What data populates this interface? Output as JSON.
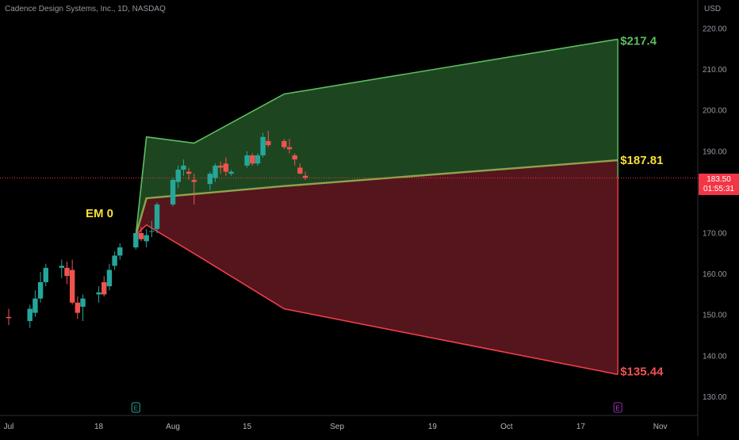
{
  "header": {
    "symbol_info": "Cadence Design Systems, Inc., 1D, NASDAQ"
  },
  "price_axis": {
    "currency": "USD",
    "ticks": [
      "220.00",
      "210.00",
      "200.00",
      "190.00",
      "180.00",
      "170.00",
      "160.00",
      "150.00",
      "140.00",
      "130.00"
    ]
  },
  "time_axis": {
    "ticks": [
      "Jul",
      "18",
      "Aug",
      "15",
      "Sep",
      "19",
      "Oct",
      "17",
      "Nov"
    ]
  },
  "current_price": {
    "price": "183.50",
    "countdown": "01:55:31"
  },
  "labels": {
    "em": "EM 0",
    "upper": "$217.4",
    "mid": "$187.81",
    "lower": "$135.44"
  },
  "markers": {
    "earnings_past": "E",
    "earnings_future": "E"
  },
  "colors": {
    "up": "#26a69a",
    "down": "#ef5350",
    "green_band": "#1f4a22",
    "red_band": "#5a161d",
    "upper_line": "#5cbf5f",
    "lower_line": "#ef3e4a",
    "mid_line": "#8fa24f",
    "em_label": "#f7e03b",
    "upper_label": "#5cbf5f",
    "lower_label": "#ef5350",
    "mid_label": "#f7e03b"
  },
  "chart_data": {
    "type": "candlestick",
    "title": "Cadence Design Systems, Inc., 1D, NASDAQ",
    "ylabel": "USD",
    "ylim": [
      125,
      225
    ],
    "x_axis": {
      "start": "2022-06-30",
      "end": "2022-11-04",
      "tick_labels": [
        "Jul",
        "18",
        "Aug",
        "15",
        "Sep",
        "19",
        "Oct",
        "17",
        "Nov"
      ]
    },
    "candles": [
      {
        "date": "2022-07-01",
        "open": 149.5,
        "high": 151.5,
        "low": 147.5,
        "close": 149.2
      },
      {
        "date": "2022-07-05",
        "open": 148.5,
        "high": 152.5,
        "low": 146.8,
        "close": 151.5
      },
      {
        "date": "2022-07-06",
        "open": 150.5,
        "high": 156.0,
        "low": 149.5,
        "close": 154.0
      },
      {
        "date": "2022-07-07",
        "open": 154.0,
        "high": 160.5,
        "low": 153.0,
        "close": 158.0
      },
      {
        "date": "2022-07-08",
        "open": 158.0,
        "high": 162.5,
        "low": 157.0,
        "close": 161.5
      },
      {
        "date": "2022-07-11",
        "open": 161.5,
        "high": 163.5,
        "low": 159.0,
        "close": 162.0
      },
      {
        "date": "2022-07-12",
        "open": 161.5,
        "high": 163.0,
        "low": 157.5,
        "close": 159.5
      },
      {
        "date": "2022-07-13",
        "open": 161.0,
        "high": 163.5,
        "low": 152.5,
        "close": 153.0
      },
      {
        "date": "2022-07-14",
        "open": 153.0,
        "high": 154.5,
        "low": 149.0,
        "close": 150.5
      },
      {
        "date": "2022-07-15",
        "open": 152.0,
        "high": 155.0,
        "low": 148.5,
        "close": 154.0
      },
      {
        "date": "2022-07-18",
        "open": 155.0,
        "high": 157.0,
        "low": 153.0,
        "close": 155.5
      },
      {
        "date": "2022-07-19",
        "open": 158.0,
        "high": 159.5,
        "low": 154.5,
        "close": 155.0
      },
      {
        "date": "2022-07-20",
        "open": 157.0,
        "high": 162.5,
        "low": 156.0,
        "close": 161.0
      },
      {
        "date": "2022-07-21",
        "open": 162.0,
        "high": 165.5,
        "low": 161.0,
        "close": 164.5
      },
      {
        "date": "2022-07-22",
        "open": 164.5,
        "high": 167.5,
        "low": 163.5,
        "close": 166.5
      },
      {
        "date": "2022-07-25",
        "open": 166.5,
        "high": 170.5,
        "low": 166.0,
        "close": 170.0
      },
      {
        "date": "2022-07-26",
        "open": 170.0,
        "high": 171.5,
        "low": 168.0,
        "close": 168.5
      },
      {
        "date": "2022-07-27",
        "open": 168.0,
        "high": 171.0,
        "low": 166.5,
        "close": 169.5
      },
      {
        "date": "2022-07-28",
        "open": 170.5,
        "high": 173.0,
        "low": 169.0,
        "close": 170.5
      },
      {
        "date": "2022-07-29",
        "open": 171.0,
        "high": 177.5,
        "low": 170.0,
        "close": 177.0
      },
      {
        "date": "2022-08-01",
        "open": 177.0,
        "high": 183.5,
        "low": 176.5,
        "close": 183.0
      },
      {
        "date": "2022-08-02",
        "open": 182.5,
        "high": 186.5,
        "low": 181.0,
        "close": 185.5
      },
      {
        "date": "2022-08-03",
        "open": 185.5,
        "high": 188.0,
        "low": 184.0,
        "close": 186.5
      },
      {
        "date": "2022-08-04",
        "open": 185.0,
        "high": 186.0,
        "low": 183.0,
        "close": 184.5
      },
      {
        "date": "2022-08-05",
        "open": 183.0,
        "high": 184.5,
        "low": 177.0,
        "close": 182.5
      },
      {
        "date": "2022-08-08",
        "open": 182.0,
        "high": 185.0,
        "low": 180.5,
        "close": 184.5
      },
      {
        "date": "2022-08-09",
        "open": 183.5,
        "high": 187.0,
        "low": 182.5,
        "close": 186.5
      },
      {
        "date": "2022-08-10",
        "open": 186.5,
        "high": 187.5,
        "low": 184.5,
        "close": 186.0
      },
      {
        "date": "2022-08-11",
        "open": 187.0,
        "high": 188.5,
        "low": 184.0,
        "close": 185.0
      },
      {
        "date": "2022-08-12",
        "open": 184.5,
        "high": 185.5,
        "low": 184.0,
        "close": 185.0
      },
      {
        "date": "2022-08-15",
        "open": 186.5,
        "high": 190.0,
        "low": 186.0,
        "close": 189.0
      },
      {
        "date": "2022-08-16",
        "open": 189.0,
        "high": 189.5,
        "low": 186.5,
        "close": 187.0
      },
      {
        "date": "2022-08-17",
        "open": 187.0,
        "high": 189.5,
        "low": 186.5,
        "close": 189.0
      },
      {
        "date": "2022-08-18",
        "open": 189.0,
        "high": 194.5,
        "low": 188.5,
        "close": 193.5
      },
      {
        "date": "2022-08-19",
        "open": 192.5,
        "high": 195.0,
        "low": 191.0,
        "close": 191.5
      },
      {
        "date": "2022-08-22",
        "open": 192.5,
        "high": 193.0,
        "low": 190.5,
        "close": 191.0
      },
      {
        "date": "2022-08-23",
        "open": 191.0,
        "high": 193.0,
        "low": 189.5,
        "close": 190.5
      },
      {
        "date": "2022-08-24",
        "open": 189.0,
        "high": 189.5,
        "low": 186.5,
        "close": 188.0
      },
      {
        "date": "2022-08-25",
        "open": 186.0,
        "high": 187.0,
        "low": 184.5,
        "close": 184.5
      },
      {
        "date": "2022-08-26",
        "open": 184.0,
        "high": 185.0,
        "low": 183.0,
        "close": 183.5
      }
    ],
    "expected_move": {
      "upper": [
        [
          "2022-07-25",
          169.5
        ],
        [
          "2022-07-27",
          193.5
        ],
        [
          "2022-08-05",
          192.0
        ],
        [
          "2022-08-22",
          204.0
        ],
        [
          "2022-10-24",
          217.4
        ]
      ],
      "lower": [
        [
          "2022-07-25",
          169.5
        ],
        [
          "2022-07-27",
          172.0
        ],
        [
          "2022-08-05",
          165.0
        ],
        [
          "2022-08-22",
          151.5
        ],
        [
          "2022-10-24",
          135.44
        ]
      ],
      "mid": [
        [
          "2022-07-25",
          169.5
        ],
        [
          "2022-07-27",
          178.5
        ],
        [
          "2022-08-22",
          181.5
        ],
        [
          "2022-10-24",
          187.81
        ]
      ]
    },
    "horizontal_line": 183.5,
    "annotations": [
      "EM 0",
      "$217.4",
      "$187.81",
      "$135.44"
    ]
  }
}
